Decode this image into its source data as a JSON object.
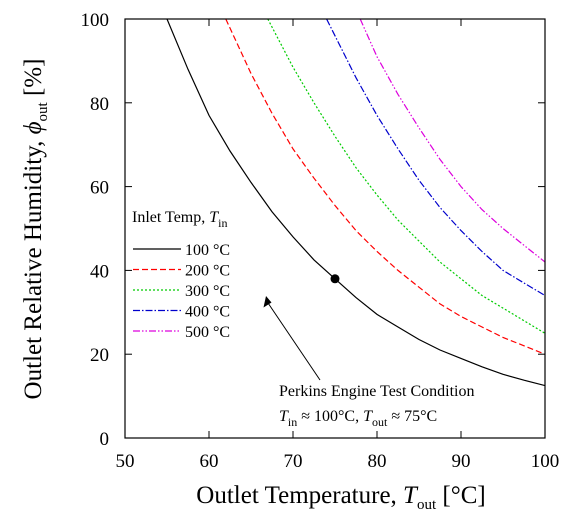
{
  "chart_data": {
    "type": "line",
    "xlabel": {
      "main": "Outlet Temperature, ",
      "var": "T",
      "sub": "out",
      "unit": " [°C]"
    },
    "ylabel": {
      "main": "Outlet Relative Humidity, ",
      "var": "ϕ",
      "sub": "out",
      "unit": " [%]"
    },
    "xlim": [
      50,
      100
    ],
    "ylim": [
      0,
      100
    ],
    "xticks": [
      50,
      60,
      70,
      80,
      90,
      100
    ],
    "yticks": [
      0,
      20,
      40,
      60,
      80,
      100
    ],
    "grid": false,
    "legend": {
      "placement": "left",
      "title_main": "Inlet Temp, ",
      "title_var": "T",
      "title_sub": "in"
    },
    "series": [
      {
        "name": "100 °C",
        "color": "#000000",
        "dash": "solid",
        "x": [
          55,
          57.5,
          60,
          62.5,
          65,
          67.5,
          70,
          72.5,
          75,
          77.5,
          80,
          82.5,
          85,
          87.5,
          90,
          92.5,
          95,
          97.5,
          100
        ],
        "y": [
          100,
          88,
          77,
          68.5,
          61,
          54,
          48,
          42.5,
          38,
          33.5,
          29.5,
          26.5,
          23.5,
          21,
          19,
          17,
          15.2,
          13.8,
          12.5
        ]
      },
      {
        "name": "200 °C",
        "color": "#ff0000",
        "dash": "dashed",
        "x": [
          62,
          65,
          67.5,
          70,
          72.5,
          75,
          77.5,
          80,
          82.5,
          85,
          87.5,
          90,
          92.5,
          95,
          97.5,
          100
        ],
        "y": [
          100,
          87,
          77.5,
          69,
          62,
          55.5,
          49.5,
          44.5,
          40,
          36,
          32,
          29,
          26.5,
          24,
          22,
          20
        ]
      },
      {
        "name": "300 °C",
        "color": "#00cc00",
        "dash": "dotted",
        "x": [
          67,
          70,
          72.5,
          75,
          77.5,
          80,
          82.5,
          85,
          87.5,
          90,
          92.5,
          95,
          97.5,
          100
        ],
        "y": [
          100,
          88.5,
          80,
          72,
          64.5,
          58,
          52,
          47,
          42,
          38,
          34,
          31,
          28,
          25
        ]
      },
      {
        "name": "400 °C",
        "color": "#0000cc",
        "dash": "dashdot",
        "x": [
          74,
          77.5,
          80,
          82.5,
          85,
          87.5,
          90,
          92.5,
          95,
          97.5,
          100
        ],
        "y": [
          100,
          86,
          77,
          69,
          61.5,
          55,
          49.5,
          44.5,
          40,
          37,
          34
        ]
      },
      {
        "name": "500 °C",
        "color": "#dd00dd",
        "dash": "dashdotdot",
        "x": [
          78,
          80,
          82.5,
          85,
          87.5,
          90,
          92.5,
          95,
          97.5,
          100
        ],
        "y": [
          100,
          91,
          82,
          74,
          66.5,
          60,
          54.5,
          50,
          46,
          42
        ]
      }
    ],
    "marker": {
      "x": 75,
      "y": 38
    },
    "annotation": {
      "title": "Perkins Engine Test Condition",
      "var1": "T",
      "sub1": "in",
      "rest1": " ≈ 100°C, ",
      "var2": "T",
      "sub2": "out",
      "rest2": " ≈ 75°C"
    }
  }
}
